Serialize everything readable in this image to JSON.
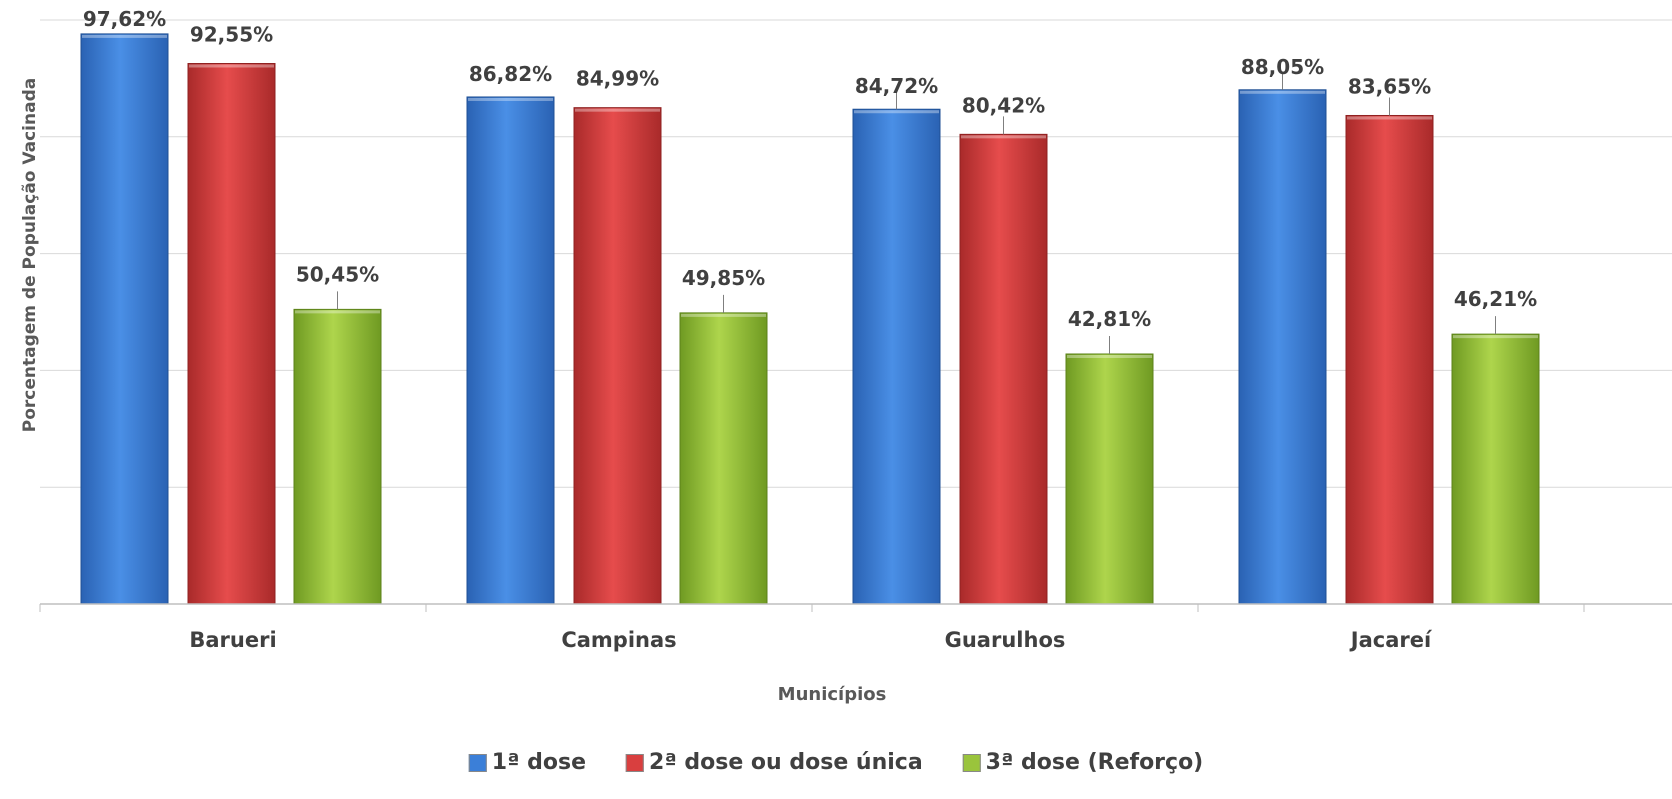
{
  "chart_data": {
    "type": "bar",
    "xlabel": "Municípios",
    "ylabel": "Porcentagem de População Vacinada",
    "ylim": [
      0,
      100
    ],
    "grid": true,
    "legend_position": "bottom",
    "categories": [
      "Barueri",
      "Campinas",
      "Guarulhos",
      "Jacareí"
    ],
    "series": [
      {
        "name": "1ª dose",
        "color": "#3b7fd8",
        "values": [
          97.62,
          86.82,
          84.72,
          88.05
        ],
        "labels": [
          "97,62%",
          "86,82%",
          "84,72%",
          "88,05%"
        ]
      },
      {
        "name": "2ª dose ou dose única",
        "color": "#d93f3f",
        "values": [
          92.55,
          84.99,
          80.42,
          83.65
        ],
        "labels": [
          "92,55%",
          "84,99%",
          "80,42%",
          "83,65%"
        ]
      },
      {
        "name": "3ª dose (Reforço)",
        "color": "#9ac43c",
        "values": [
          50.45,
          49.85,
          42.81,
          46.21
        ],
        "labels": [
          "50,45%",
          "49,85%",
          "42,81%",
          "46,21%"
        ]
      }
    ]
  }
}
